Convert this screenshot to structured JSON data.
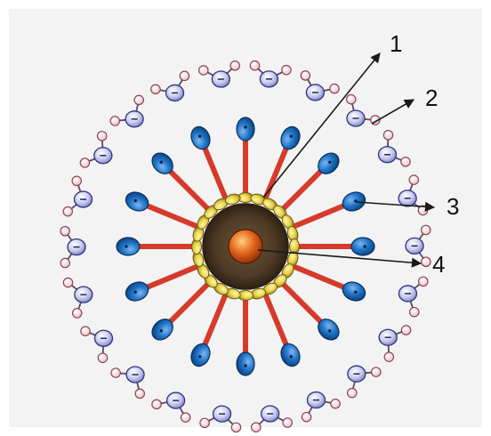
{
  "diagram": {
    "labels": [
      {
        "id": "1",
        "text": "1"
      },
      {
        "id": "2",
        "text": "2"
      },
      {
        "id": "3",
        "text": "3"
      },
      {
        "id": "4",
        "text": "4"
      }
    ],
    "structure": {
      "micelle_rays": 16,
      "inner_beads": 24,
      "water_molecules": 22
    },
    "colors": {
      "background": "#f3f3f3",
      "ray": "#d63a2b",
      "head": "#1c70c4",
      "bead": "#e9d64c",
      "core_ring": "#4e3a26",
      "nucleus": "#e0651c",
      "water_oxygen": "#c7c9ec",
      "water_hydrogen": "#f2d9de"
    }
  }
}
